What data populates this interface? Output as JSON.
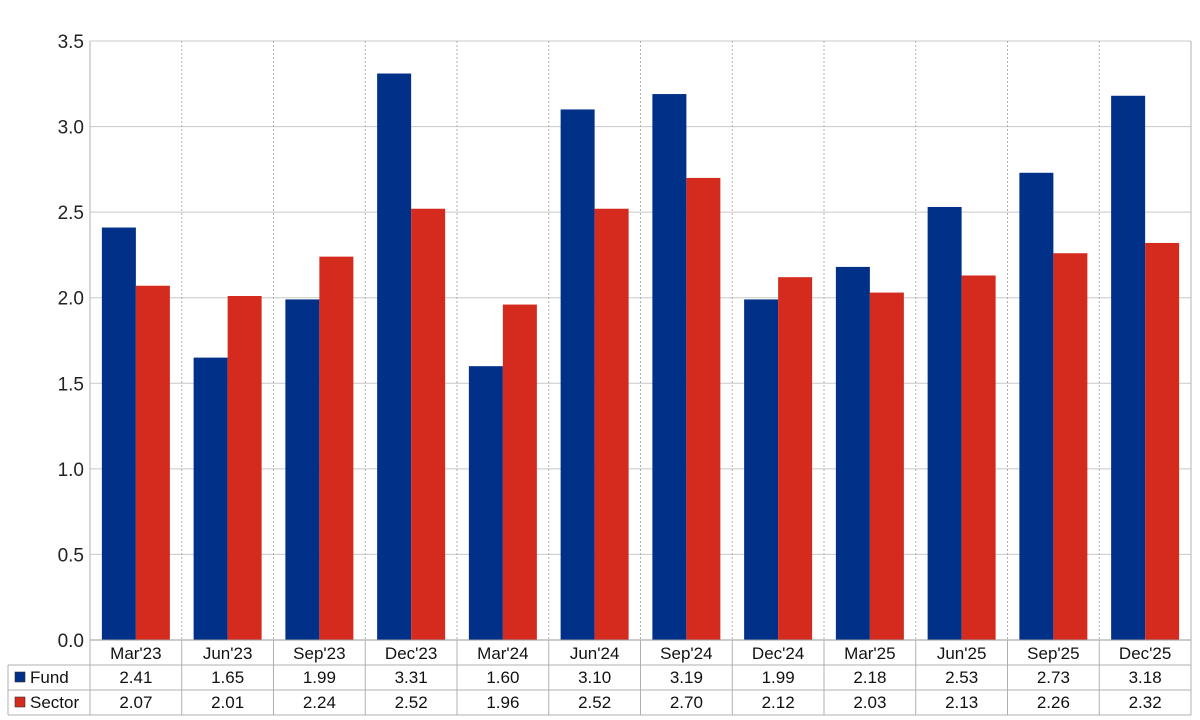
{
  "chart_data": {
    "type": "bar",
    "categories": [
      "Mar'23",
      "Jun'23",
      "Sep'23",
      "Dec'23",
      "Mar'24",
      "Jun'24",
      "Sep'24",
      "Dec'24",
      "Mar'25",
      "Jun'25",
      "Sep'25",
      "Dec'25"
    ],
    "series": [
      {
        "name": "Fund",
        "color": "#003087",
        "values": [
          2.41,
          1.65,
          1.99,
          3.31,
          1.6,
          3.1,
          3.19,
          1.99,
          2.18,
          2.53,
          2.73,
          3.18
        ],
        "labels": [
          "2.41",
          "1.65",
          "1.99",
          "3.31",
          "1.60",
          "3.10",
          "3.19",
          "1.99",
          "2.18",
          "2.53",
          "2.73",
          "3.18"
        ]
      },
      {
        "name": "Sector",
        "color": "#d52b1e",
        "values": [
          2.07,
          2.01,
          2.24,
          2.52,
          1.96,
          2.52,
          2.7,
          2.12,
          2.03,
          2.13,
          2.26,
          2.32
        ],
        "labels": [
          "2.07",
          "2.01",
          "2.24",
          "2.52",
          "1.96",
          "2.52",
          "2.70",
          "2.12",
          "2.03",
          "2.13",
          "2.26",
          "2.32"
        ]
      }
    ],
    "ylim": [
      0,
      3.5
    ],
    "yticks": [
      "0.0",
      "0.5",
      "1.0",
      "1.5",
      "2.0",
      "2.5",
      "3.0",
      "3.5"
    ],
    "grid": true,
    "legend": "data table below chart"
  }
}
